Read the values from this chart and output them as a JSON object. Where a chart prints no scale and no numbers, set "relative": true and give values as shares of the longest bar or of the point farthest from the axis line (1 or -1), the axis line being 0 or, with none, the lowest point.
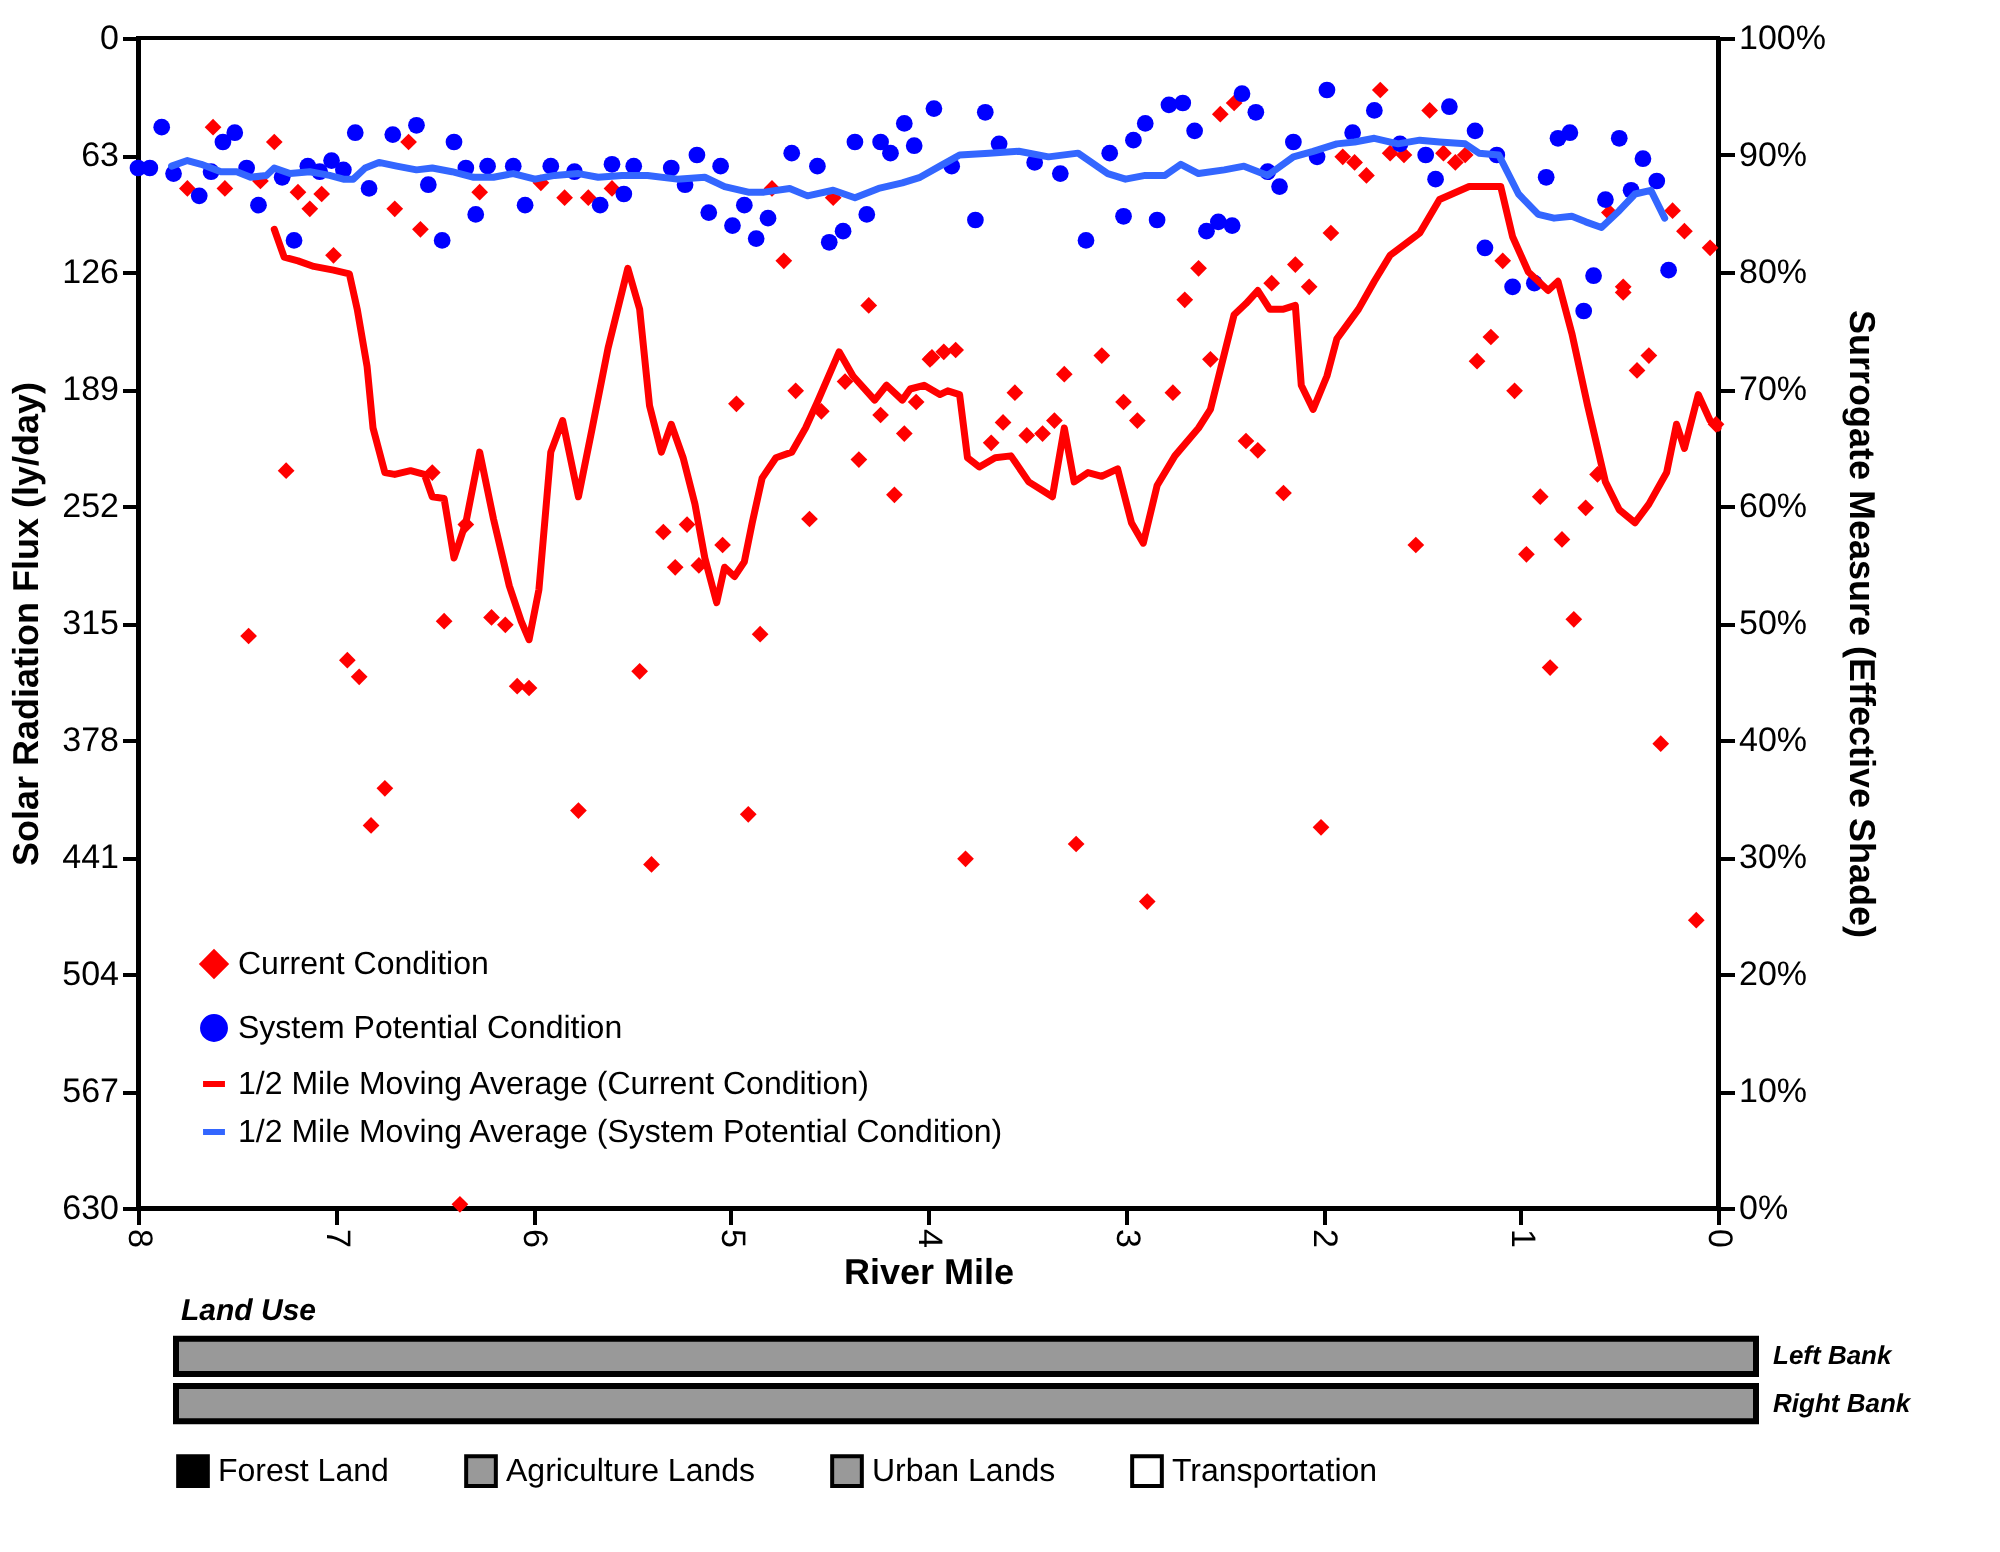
{
  "chart_data": [
    {
      "type": "scatter",
      "xlabel": "River Mile",
      "ylabel": "Solar Radiation Flux (ly/day)",
      "y2label": "Surrogate Measure (Effective Shade)",
      "xlim": [
        8,
        0
      ],
      "xticks": [
        8,
        7,
        6,
        5,
        4,
        3,
        2,
        1,
        0
      ],
      "ylim": [
        630,
        0
      ],
      "yticks": [
        0,
        63,
        126,
        189,
        252,
        315,
        378,
        441,
        504,
        567,
        630
      ],
      "y2lim": [
        0,
        100
      ],
      "y2ticks": [
        {
          "value": 0,
          "label": "0%"
        },
        {
          "value": 10,
          "label": "10%"
        },
        {
          "value": 20,
          "label": "20%"
        },
        {
          "value": 30,
          "label": "30%"
        },
        {
          "value": 40,
          "label": "40%"
        },
        {
          "value": 50,
          "label": "50%"
        },
        {
          "value": 60,
          "label": "60%"
        },
        {
          "value": 70,
          "label": "70%"
        },
        {
          "value": 80,
          "label": "80%"
        },
        {
          "value": 90,
          "label": "90%"
        },
        {
          "value": 100,
          "label": "100%"
        }
      ],
      "legend": "bottom left",
      "series": [
        {
          "name": "Current Condition",
          "type": "scatter",
          "marker": "diamond",
          "color": "#ff0000",
          "x": [
            7.62,
            7.75,
            7.56,
            7.31,
            7.38,
            7.19,
            7.13,
            7.07,
            6.7,
            6.63,
            6.57,
            7.01,
            6.27,
            5.96,
            5.84,
            5.72,
            5.6,
            4.79,
            4.73,
            4.48,
            4.3,
            4.97,
            4.67,
            4.54,
            4.42,
            4.35,
            4.24,
            4.12,
            4.17,
            4.06,
            3.98,
            7.25,
            6.51,
            6.34,
            5.34,
            5.22,
            5.28,
            5.16,
            5.04,
            4.6,
            7.44,
            6.94,
            6.88,
            6.45,
            6.21,
            6.14,
            6.08,
            6.02,
            5.46,
            4.85,
            6.75,
            6.82,
            5.77,
            4.91,
            5.4,
            6.37,
            3.99,
            3.92,
            3.86,
            3.56,
            3.62,
            3.68,
            3.5,
            3.42,
            3.36,
            3.31,
            3.12,
            3.01,
            2.94,
            2.76,
            2.57,
            2.7,
            2.26,
            2.07,
            2.63,
            2.14,
            2.39,
            2.33,
            2.2,
            1.53,
            1.22,
            1.15,
            1.03,
            0.48,
            0.41,
            0.35,
            0.61,
            0.9,
            0.67,
            0.97,
            0.79,
            0.73,
            0.85,
            0.29,
            0.01,
            3.81,
            3.25,
            2.89,
            2.01,
            0.11,
            2.52,
            2.45,
            1.71,
            1.46,
            1.96,
            1.9,
            1.84,
            1.78,
            1.66,
            1.59,
            1.39,
            1.33,
            1.28,
            1.09,
            0.55,
            0.23,
            0.17,
            0.04,
            0.48
          ],
          "values": [
            48,
            81,
            81,
            56,
            77,
            83,
            92,
            84,
            92,
            56,
            103,
            117,
            83,
            78,
            86,
            86,
            81,
            81,
            120,
            86,
            144,
            197,
            190,
            201,
            185,
            227,
            203,
            213,
            246,
            196,
            172,
            233,
            234,
            262,
            266,
            262,
            285,
            284,
            273,
            259,
            322,
            335,
            344,
            314,
            312,
            316,
            349,
            350,
            341,
            321,
            404,
            424,
            416,
            418,
            445,
            628,
            173,
            169,
            168,
            191,
            207,
            218,
            214,
            213,
            206,
            181,
            171,
            196,
            206,
            191,
            173,
            141,
            132,
            134,
            124,
            122,
            217,
            222,
            245,
            273,
            174,
            161,
            190,
            137,
            179,
            171,
            235,
            247,
            253,
            278,
            270,
            313,
            339,
            380,
            208,
            442,
            434,
            465,
            425,
            475,
            41,
            35,
            28,
            39,
            105,
            64,
            67,
            74,
            62,
            63,
            62,
            67,
            63,
            120,
            94,
            93,
            104,
            113,
            134
          ]
        },
        {
          "name": "System Potential Condition",
          "type": "scatter",
          "marker": "circle",
          "color": "#0000ff",
          "x": [
            7.88,
            8.0,
            7.94,
            7.82,
            7.69,
            7.63,
            7.57,
            7.51,
            7.39,
            7.45,
            7.27,
            7.21,
            7.14,
            7.08,
            7.02,
            6.96,
            6.9,
            6.83,
            6.71,
            6.59,
            6.53,
            6.46,
            6.4,
            6.34,
            6.29,
            6.23,
            6.1,
            6.04,
            5.91,
            5.79,
            5.66,
            5.6,
            5.54,
            5.49,
            5.3,
            5.23,
            5.17,
            5.11,
            5.05,
            4.99,
            4.93,
            4.87,
            4.81,
            4.69,
            4.56,
            4.5,
            4.43,
            4.37,
            4.31,
            4.24,
            4.19,
            4.12,
            4.07,
            3.97,
            3.71,
            3.88,
            3.76,
            3.64,
            3.46,
            3.33,
            3.2,
            3.08,
            3.01,
            2.96,
            2.9,
            2.84,
            2.78,
            2.71,
            2.65,
            2.59,
            2.53,
            2.46,
            2.41,
            2.34,
            2.28,
            2.22,
            2.15,
            2.03,
            1.98,
            1.85,
            1.74,
            1.61,
            1.48,
            1.43,
            1.36,
            1.23,
            1.18,
            1.12,
            1.04,
            0.87,
            0.81,
            0.75,
            0.63,
            0.57,
            0.5,
            0.44,
            0.38,
            0.31,
            0.25,
            0.93,
            0.68
          ],
          "values": [
            48,
            70,
            70,
            73,
            85,
            72,
            56,
            51,
            90,
            70,
            75,
            109,
            69,
            72,
            66,
            71,
            51,
            81,
            52,
            47,
            79,
            109,
            56,
            70,
            95,
            69,
            69,
            90,
            69,
            72,
            90,
            68,
            84,
            69,
            70,
            79,
            63,
            94,
            69,
            101,
            90,
            108,
            97,
            62,
            69,
            110,
            104,
            56,
            95,
            56,
            62,
            46,
            58,
            38,
            40,
            69,
            98,
            57,
            67,
            73,
            109,
            62,
            96,
            55,
            46,
            98,
            36,
            35,
            50,
            104,
            99,
            101,
            30,
            40,
            72,
            80,
            56,
            64,
            28,
            51,
            39,
            57,
            63,
            76,
            37,
            50,
            113,
            63,
            134,
            75,
            54,
            51,
            128,
            87,
            54,
            82,
            65,
            77,
            125,
            132,
            147
          ]
        },
        {
          "name": "1/2 Mile Moving Average (Current Condition)",
          "type": "line",
          "color": "#ff0000",
          "x": [
            7.31,
            7.26,
            7.19,
            7.11,
            7.01,
            6.93,
            6.89,
            6.84,
            6.81,
            6.75,
            6.7,
            6.62,
            6.55,
            6.51,
            6.45,
            6.4,
            6.34,
            6.27,
            6.2,
            6.12,
            6.06,
            6.02,
            5.97,
            5.91,
            5.85,
            5.77,
            5.7,
            5.62,
            5.52,
            5.46,
            5.41,
            5.35,
            5.3,
            5.24,
            5.18,
            5.13,
            5.07,
            5.03,
            4.98,
            4.93,
            4.89,
            4.84,
            4.77,
            4.69,
            4.62,
            4.56,
            4.45,
            4.38,
            4.27,
            4.21,
            4.13,
            4.09,
            4.02,
            3.94,
            3.9,
            3.84,
            3.8,
            3.74,
            3.66,
            3.58,
            3.49,
            3.37,
            3.31,
            3.26,
            3.19,
            3.12,
            3.04,
            2.97,
            2.91,
            2.84,
            2.75,
            2.63,
            2.57,
            2.45,
            2.39,
            2.33,
            2.27,
            2.2,
            2.14,
            2.11,
            2.05,
            1.98,
            1.93,
            1.82,
            1.74,
            1.66,
            1.51,
            1.41,
            1.26,
            1.19,
            1.1,
            1.04,
            0.96,
            0.86,
            0.81,
            0.74,
            0.66,
            0.57,
            0.5,
            0.42,
            0.35,
            0.26,
            0.21,
            0.17,
            0.1,
            0.04,
            0.0
          ],
          "values": [
            103,
            118,
            120,
            123,
            125,
            127,
            146,
            177,
            210,
            234,
            235,
            233,
            235,
            247,
            248,
            280,
            261,
            223,
            259,
            295,
            314,
            324,
            297,
            223,
            206,
            247,
            210,
            167,
            124,
            146,
            198,
            223,
            208,
            226,
            251,
            280,
            304,
            285,
            290,
            282,
            261,
            237,
            226,
            223,
            210,
            196,
            169,
            182,
            195,
            187,
            195,
            189,
            187,
            192,
            190,
            192,
            226,
            231,
            226,
            225,
            239,
            247,
            210,
            239,
            234,
            236,
            232,
            261,
            272,
            241,
            225,
            210,
            200,
            149,
            143,
            136,
            146,
            146,
            144,
            187,
            200,
            182,
            162,
            146,
            131,
            117,
            105,
            87,
            80,
            80,
            80,
            107,
            126,
            136,
            131,
            159,
            198,
            239,
            254,
            261,
            251,
            234,
            208,
            221,
            192,
            206,
            210
          ]
        },
        {
          "name": "1/2 Mile Moving Average (System Potential Condition)",
          "type": "line",
          "color": "#3366ff",
          "x": [
            7.83,
            7.75,
            7.68,
            7.58,
            7.5,
            7.43,
            7.35,
            7.31,
            7.23,
            7.13,
            7.03,
            6.96,
            6.91,
            6.85,
            6.78,
            6.69,
            6.59,
            6.51,
            6.41,
            6.3,
            6.2,
            6.1,
            5.99,
            5.89,
            5.77,
            5.67,
            5.55,
            5.42,
            5.27,
            5.13,
            5.03,
            4.91,
            4.83,
            4.7,
            4.61,
            4.48,
            4.37,
            4.25,
            4.13,
            4.04,
            3.94,
            3.84,
            3.69,
            3.54,
            3.39,
            3.24,
            3.09,
            3.0,
            2.9,
            2.8,
            2.72,
            2.63,
            2.5,
            2.4,
            2.28,
            2.15,
            2.05,
            1.93,
            1.84,
            1.74,
            1.62,
            1.51,
            1.41,
            1.28,
            1.21,
            1.11,
            1.01,
            0.91,
            0.83,
            0.74,
            0.67,
            0.59,
            0.5,
            0.42,
            0.34,
            0.27
          ],
          "values": [
            69,
            66,
            68,
            72,
            72,
            75,
            74,
            70,
            73,
            72,
            74,
            76,
            76,
            70,
            67,
            69,
            71,
            70,
            72,
            75,
            75,
            73,
            76,
            74,
            73,
            75,
            74,
            74,
            76,
            75,
            80,
            83,
            83,
            81,
            85,
            82,
            86,
            81,
            78,
            75,
            69,
            63,
            62,
            61,
            64,
            62,
            73,
            76,
            74,
            74,
            68,
            73,
            71,
            69,
            74,
            64,
            61,
            57,
            56,
            54,
            57,
            55,
            56,
            57,
            62,
            63,
            84,
            95,
            97,
            96,
            99,
            102,
            93,
            84,
            82,
            97
          ]
        }
      ]
    },
    {
      "type": "bar",
      "orientation": "horizontal",
      "relative": true,
      "title": "Land Use",
      "legend": "bottom",
      "categories": [
        "Left Bank",
        "Right Bank"
      ],
      "series": [
        {
          "name": "Forest Land",
          "color": "#000000",
          "values": [
            null,
            null
          ]
        },
        {
          "name": "Agriculture Lands",
          "color": "#999999",
          "values": [
            1,
            1
          ]
        },
        {
          "name": "Urban Lands",
          "color": "#999999",
          "values": [
            null,
            null
          ]
        },
        {
          "name": "Transportation",
          "color": "#ffffff",
          "values": [
            null,
            null
          ]
        }
      ]
    }
  ]
}
